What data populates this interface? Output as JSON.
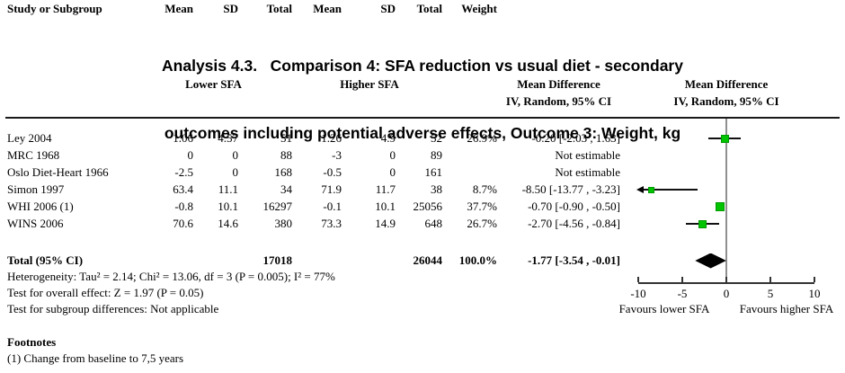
{
  "title": {
    "line1": "Analysis 4.3.   Comparison 4: SFA reduction vs usual diet - secondary",
    "line2": "outcomes including potential adverse effects, Outcome 3: Weight, kg"
  },
  "header": {
    "group_lower": "Lower SFA",
    "group_higher": "Higher SFA",
    "study": "Study or Subgroup",
    "mean": "Mean",
    "sd": "SD",
    "total": "Total",
    "weight": "Weight",
    "md_stat_line1": "Mean Difference",
    "md_stat_line2": "IV, Random, 95% CI",
    "md_plot_line1": "Mean Difference",
    "md_plot_line2": "IV, Random, 95% CI"
  },
  "rows": [
    {
      "study": "Ley 2004",
      "mean1": "1.06",
      "sd1": "4.57",
      "total1": "51",
      "mean2": "1.26",
      "sd2": "4.9",
      "total2": "52",
      "weight": "26.9%",
      "ci": "-0.20 [-2.03 , 1.63]"
    },
    {
      "study": "MRC 1968",
      "mean1": "0",
      "sd1": "0",
      "total1": "88",
      "mean2": "-3",
      "sd2": "0",
      "total2": "89",
      "weight": "",
      "ci": "Not estimable"
    },
    {
      "study": "Oslo Diet-Heart 1966",
      "mean1": "-2.5",
      "sd1": "0",
      "total1": "168",
      "mean2": "-0.5",
      "sd2": "0",
      "total2": "161",
      "weight": "",
      "ci": "Not estimable"
    },
    {
      "study": "Simon 1997",
      "mean1": "63.4",
      "sd1": "11.1",
      "total1": "34",
      "mean2": "71.9",
      "sd2": "11.7",
      "total2": "38",
      "weight": "8.7%",
      "ci": "-8.50 [-13.77 , -3.23]"
    },
    {
      "study": "WHI 2006 (1)",
      "mean1": "-0.8",
      "sd1": "10.1",
      "total1": "16297",
      "mean2": "-0.1",
      "sd2": "10.1",
      "total2": "25056",
      "weight": "37.7%",
      "ci": "-0.70 [-0.90 , -0.50]"
    },
    {
      "study": "WINS 2006",
      "mean1": "70.6",
      "sd1": "14.6",
      "total1": "380",
      "mean2": "73.3",
      "sd2": "14.9",
      "total2": "648",
      "weight": "26.7%",
      "ci": "-2.70 [-4.56 , -0.84]"
    }
  ],
  "total_row": {
    "label": "Total (95% CI)",
    "total1": "17018",
    "total2": "26044",
    "weight": "100.0%",
    "ci": "-1.77 [-3.54 , -0.01]"
  },
  "stats": {
    "heterogeneity": "Heterogeneity: Tau² = 2.14; Chi² = 13.06, df = 3 (P = 0.005); I² = 77%",
    "overall_effect": "Test for overall effect: Z = 1.97 (P = 0.05)",
    "subgroup_differences": "Test for subgroup differences: Not applicable"
  },
  "footnotes": {
    "heading": "Footnotes",
    "items": [
      "(1) Change from baseline to 7,5 years"
    ]
  },
  "chart_data": {
    "type": "forest",
    "effect_measure": "Mean Difference, IV, Random, 95% CI",
    "xlim": [
      -10,
      10
    ],
    "ticks": [
      -10,
      -5,
      0,
      5,
      10
    ],
    "favours_left": "Favours lower SFA",
    "favours_right": "Favours higher SFA",
    "marker_color": "#00c400",
    "studies": [
      {
        "name": "Ley 2004",
        "row": 0,
        "estimable": true,
        "md": -0.2,
        "low": -2.03,
        "high": 1.63,
        "weight": 26.9
      },
      {
        "name": "MRC 1968",
        "row": 1,
        "estimable": false,
        "md": null,
        "low": null,
        "high": null,
        "weight": null
      },
      {
        "name": "Oslo Diet-Heart 1966",
        "row": 2,
        "estimable": false,
        "md": null,
        "low": null,
        "high": null,
        "weight": null
      },
      {
        "name": "Simon 1997",
        "row": 3,
        "estimable": true,
        "md": -8.5,
        "low": -13.77,
        "high": -3.23,
        "weight": 8.7
      },
      {
        "name": "WHI 2006 (1)",
        "row": 4,
        "estimable": true,
        "md": -0.7,
        "low": -0.9,
        "high": -0.5,
        "weight": 37.7
      },
      {
        "name": "WINS 2006",
        "row": 5,
        "estimable": true,
        "md": -2.7,
        "low": -4.56,
        "high": -0.84,
        "weight": 26.7
      }
    ],
    "total": {
      "md": -1.77,
      "low": -3.54,
      "high": -0.01,
      "weight": 100.0
    }
  }
}
